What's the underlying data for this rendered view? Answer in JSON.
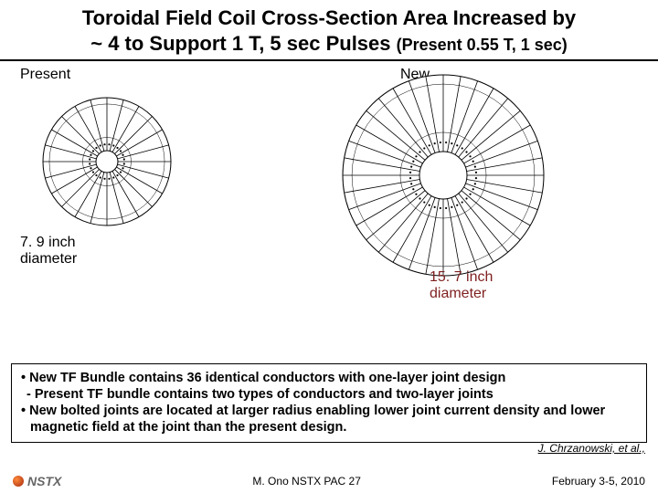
{
  "title": {
    "line1": "Toroidal Field Coil Cross-Section Area Increased by",
    "line2_main": "~ 4 to Support 1 T, 5 sec Pulses ",
    "line2_sub": "(Present 0.55 T, 1 sec)"
  },
  "present": {
    "label": "Present",
    "diameter_line1": "7. 9 inch",
    "diameter_line2": "diameter",
    "coil": {
      "outer_radius": 70,
      "inner_radius": 12,
      "conductor_count": 24,
      "stroke": "#000000",
      "fill": "#ffffff"
    }
  },
  "new": {
    "label": "New",
    "diameter_line1": "15. 7 inch",
    "diameter_line2": "diameter",
    "diameter_color": "#7f1f1f",
    "coil": {
      "outer_radius": 110,
      "inner_radius": 26,
      "conductor_count": 36,
      "stroke": "#000000",
      "fill": "#ffffff"
    }
  },
  "bullets": {
    "b1": "• New TF Bundle contains 36 identical conductors with one-layer joint design",
    "b1_sub": "  - Present TF bundle contains two types of conductors and two-layer joints",
    "b2": "• New bolted joints are located at larger radius enabling lower joint current density and lower magnetic field at the joint than the present design."
  },
  "attribution": "J. Chrzanowski, et al.,",
  "footer": {
    "logo_text": "NSTX",
    "center": "M. Ono NSTX PAC 27",
    "right": "February 3-5, 2010"
  }
}
